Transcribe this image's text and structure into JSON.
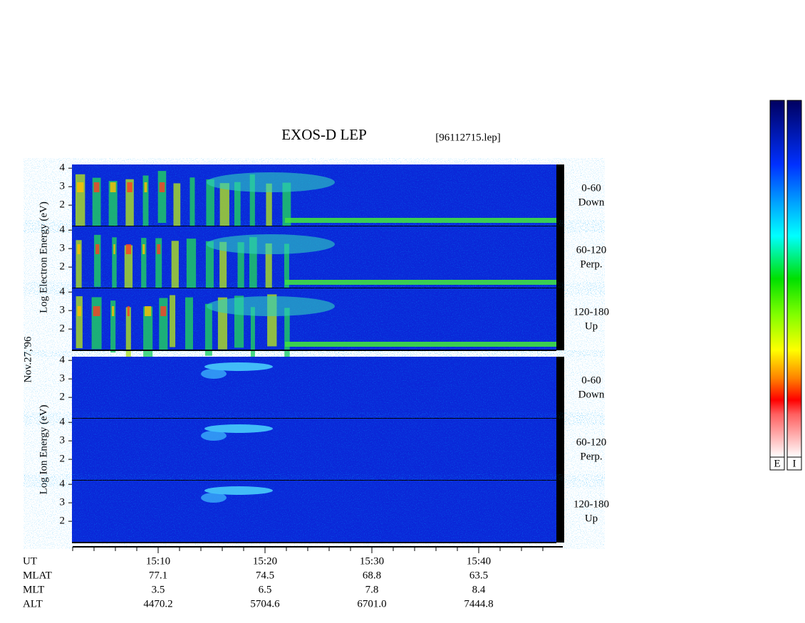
{
  "title": "EXOS-D LEP",
  "file": "[96112715.lep]",
  "date": "Nov.27,'96",
  "chart_data": {
    "type": "spectrogram",
    "groups": [
      {
        "ylabel": "Log Electron Energy (eV)",
        "panels": [
          {
            "angle": "0-60",
            "direction": "Down"
          },
          {
            "angle": "60-120",
            "direction": "Perp."
          },
          {
            "angle": "120-180",
            "direction": "Up"
          }
        ]
      },
      {
        "ylabel": "Log Ion Energy (eV)",
        "panels": [
          {
            "angle": "0-60",
            "direction": "Down"
          },
          {
            "angle": "60-120",
            "direction": "Perp."
          },
          {
            "angle": "120-180",
            "direction": "Up"
          }
        ]
      }
    ],
    "ylim": [
      0.85,
      4.2
    ],
    "yticks": [
      2,
      3,
      4
    ],
    "ephemeris": [
      {
        "name": "UT",
        "values": [
          "15:10",
          "15:20",
          "15:30",
          "15:40"
        ]
      },
      {
        "name": "MLAT",
        "values": [
          "77.1",
          "74.5",
          "68.8",
          "63.5"
        ]
      },
      {
        "name": "MLT",
        "values": [
          "3.5",
          "6.5",
          "7.8",
          "8.4"
        ]
      },
      {
        "name": "ALT",
        "values": [
          "4470.2",
          "5704.6",
          "6701.0",
          "7444.8"
        ]
      }
    ],
    "colorbar": [
      "E",
      "I"
    ]
  }
}
